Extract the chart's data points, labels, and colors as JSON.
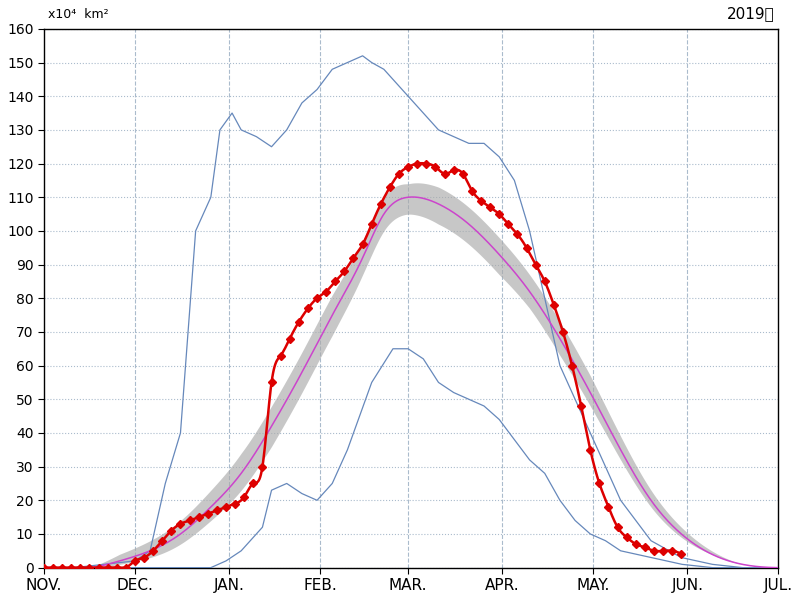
{
  "title_unit": "x10⁴  km²",
  "title_year": "2019年",
  "ylim": [
    0,
    160
  ],
  "yticks": [
    0,
    10,
    20,
    30,
    40,
    50,
    60,
    70,
    80,
    90,
    100,
    110,
    120,
    130,
    140,
    150,
    160
  ],
  "months_labels": [
    "NOV.",
    "DEC.",
    "JAN.",
    "FEB.",
    "MAR.",
    "APR.",
    "MAY.",
    "JUN.",
    "JUL."
  ],
  "month_starts": [
    0,
    30,
    61,
    91,
    120,
    151,
    181,
    212,
    242
  ],
  "total_days": 242,
  "color_red": "#dd0000",
  "color_purple": "#cc44cc",
  "color_blue": "#6688bb",
  "color_gray_fill": "#aaaaaa",
  "color_grid": "#aabbcc",
  "mean_x": [
    0,
    5,
    15,
    25,
    35,
    45,
    55,
    65,
    75,
    85,
    95,
    105,
    112,
    120,
    130,
    140,
    150,
    160,
    170,
    180,
    190,
    200,
    210,
    220,
    230,
    242
  ],
  "mean_y": [
    0,
    0,
    0,
    2,
    5,
    10,
    18,
    28,
    42,
    58,
    75,
    92,
    105,
    110,
    108,
    102,
    93,
    82,
    68,
    52,
    35,
    20,
    10,
    4,
    1,
    0
  ],
  "sigma_upper_add": [
    0,
    0,
    0,
    2,
    3,
    4,
    5,
    6,
    6,
    6,
    6,
    5,
    5,
    4,
    5,
    5,
    5,
    5,
    5,
    5,
    4,
    3,
    2,
    1,
    0,
    0
  ],
  "sigma_lower_sub": [
    0,
    0,
    0,
    1,
    2,
    3,
    4,
    5,
    6,
    6,
    6,
    5,
    5,
    5,
    6,
    6,
    6,
    5,
    5,
    4,
    3,
    2,
    1,
    0,
    0,
    0
  ],
  "max_x": [
    0,
    10,
    20,
    30,
    35,
    40,
    45,
    50,
    55,
    58,
    62,
    65,
    70,
    75,
    80,
    85,
    90,
    95,
    100,
    105,
    108,
    112,
    115,
    120,
    125,
    130,
    135,
    140,
    145,
    150,
    155,
    160,
    165,
    170,
    180,
    190,
    200,
    210,
    220,
    230,
    242
  ],
  "max_y": [
    0,
    0,
    1,
    2,
    5,
    25,
    40,
    100,
    110,
    130,
    135,
    130,
    128,
    125,
    130,
    138,
    142,
    148,
    150,
    152,
    150,
    148,
    145,
    140,
    135,
    130,
    128,
    126,
    126,
    122,
    115,
    100,
    80,
    60,
    40,
    20,
    8,
    3,
    1,
    0,
    0
  ],
  "min_x": [
    0,
    25,
    35,
    45,
    55,
    60,
    65,
    68,
    72,
    75,
    80,
    85,
    90,
    95,
    100,
    108,
    115,
    120,
    125,
    130,
    135,
    140,
    145,
    150,
    155,
    160,
    165,
    170,
    175,
    180,
    185,
    190,
    195,
    200,
    210,
    220,
    242
  ],
  "min_y": [
    0,
    0,
    0,
    0,
    0,
    2,
    5,
    8,
    12,
    23,
    25,
    22,
    20,
    25,
    35,
    55,
    65,
    65,
    62,
    55,
    52,
    50,
    48,
    44,
    38,
    32,
    28,
    20,
    14,
    10,
    8,
    5,
    4,
    3,
    1,
    0,
    0
  ],
  "red_x": [
    0,
    3,
    6,
    9,
    12,
    15,
    18,
    21,
    24,
    27,
    30,
    33,
    36,
    39,
    42,
    45,
    48,
    51,
    54,
    57,
    60,
    63,
    66,
    69,
    72,
    75,
    78,
    81,
    84,
    87,
    90,
    93,
    96,
    99,
    102,
    105,
    108,
    111,
    114,
    117,
    120,
    123,
    126,
    129,
    132,
    135,
    138,
    141,
    144,
    147,
    150,
    153,
    156,
    159,
    162,
    165,
    168,
    171,
    174,
    177,
    180,
    183,
    186,
    189,
    192,
    195,
    198,
    201,
    204,
    207,
    210
  ],
  "red_y": [
    0,
    0,
    0,
    0,
    0,
    0,
    0,
    0,
    0,
    0,
    2,
    3,
    5,
    8,
    11,
    13,
    14,
    15,
    16,
    17,
    18,
    19,
    21,
    25,
    30,
    55,
    63,
    68,
    73,
    77,
    80,
    82,
    85,
    88,
    92,
    96,
    102,
    108,
    113,
    117,
    119,
    120,
    120,
    119,
    117,
    118,
    117,
    112,
    109,
    107,
    105,
    102,
    99,
    95,
    90,
    85,
    78,
    70,
    60,
    48,
    35,
    25,
    18,
    12,
    9,
    7,
    6,
    5,
    5,
    5,
    4
  ]
}
